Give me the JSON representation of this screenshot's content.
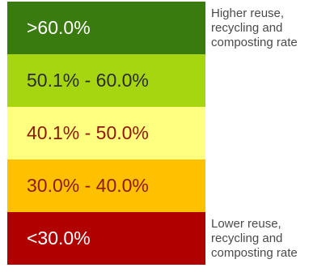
{
  "legend": {
    "bands": [
      {
        "label": ">60.0%",
        "fill": "#3a7b0f",
        "text_color": "#ffffff"
      },
      {
        "label": "50.1% - 60.0%",
        "fill": "#a5d60f",
        "text_color": "#2b2b2b"
      },
      {
        "label": "40.1% - 50.0%",
        "fill": "#ffff80",
        "text_color": "#8b1a00"
      },
      {
        "label": "30.0% - 40.0%",
        "fill": "#ffc000",
        "text_color": "#8b1a00"
      },
      {
        "label": "<30.0%",
        "fill": "#b00000",
        "text_color": "#ffffff"
      }
    ]
  },
  "notes": {
    "top": "Higher reuse,\nrecycling and\ncomposting rate",
    "bottom": "Lower reuse,\nrecycling and\ncomposting rate"
  }
}
